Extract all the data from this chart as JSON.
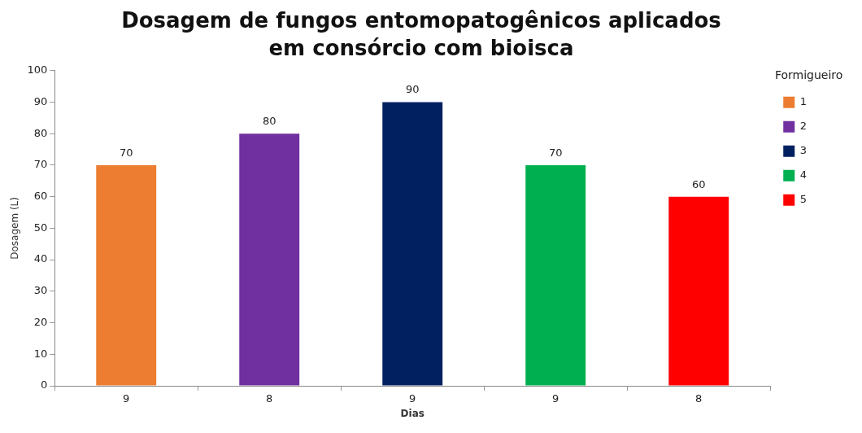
{
  "chart_data": {
    "type": "bar",
    "title": "Dosagem de fungos entomopatogênicos aplicados em consórcio com bioisca",
    "xlabel": "Dias",
    "ylabel": "Dosagem (L)",
    "legend_title": "Formigueiro",
    "categories": [
      "9",
      "8",
      "9",
      "9",
      "8"
    ],
    "stacked": true,
    "series": [
      {
        "name": "1",
        "color": "#ed7d31",
        "values": [
          70,
          null,
          null,
          null,
          null
        ]
      },
      {
        "name": "2",
        "color": "#7030a0",
        "values": [
          null,
          80,
          null,
          null,
          null
        ]
      },
      {
        "name": "3",
        "color": "#002060",
        "values": [
          null,
          null,
          90,
          null,
          null
        ]
      },
      {
        "name": "4",
        "color": "#00b050",
        "values": [
          null,
          null,
          null,
          70,
          null
        ]
      },
      {
        "name": "5",
        "color": "#ff0000",
        "values": [
          null,
          null,
          null,
          null,
          60
        ]
      }
    ],
    "ylim": [
      0,
      100
    ],
    "yticks": [
      0,
      10,
      20,
      30,
      40,
      50,
      60,
      70,
      80,
      90,
      100
    ],
    "grid": false,
    "legend": "right",
    "data_labels": true
  }
}
